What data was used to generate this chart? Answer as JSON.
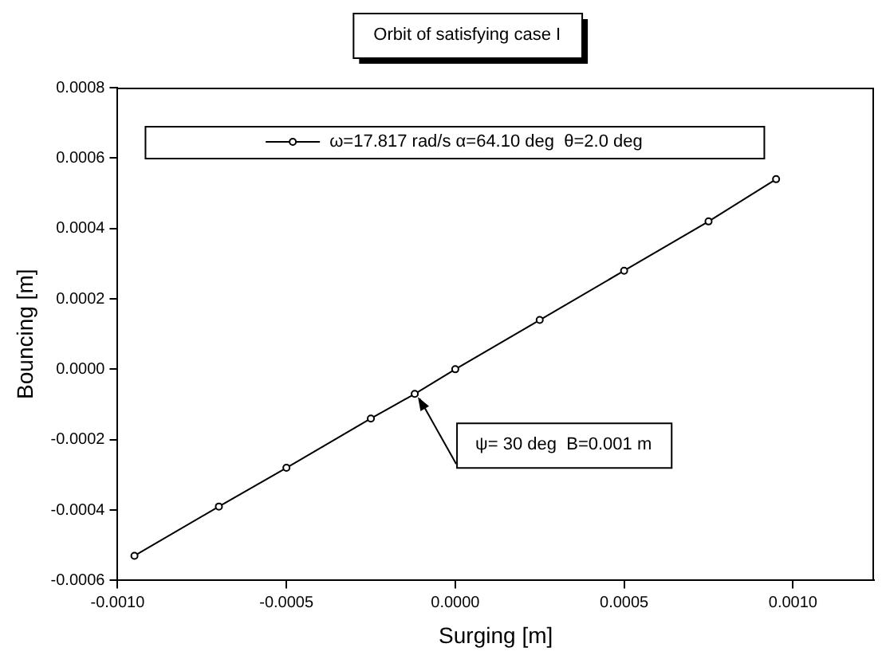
{
  "chart_data": {
    "type": "line",
    "title": "Orbit of satisfying case I",
    "xlabel": "Surging [m]",
    "ylabel": "Bouncing [m]",
    "x": [
      -0.00095,
      -0.0007,
      -0.0005,
      -0.00025,
      -0.00012,
      0,
      0.00025,
      0.0005,
      0.00075,
      0.00095
    ],
    "series": [
      {
        "name": "ω=17.817 rad/s α=64.10 deg  θ=2.0 deg",
        "color": "#000000",
        "values": [
          -0.00053,
          -0.00039,
          -0.00028,
          -0.00014,
          -7e-05,
          0,
          0.00014,
          0.00028,
          0.00042,
          0.00054
        ]
      }
    ],
    "xlim": [
      -0.001,
      0.00124
    ],
    "xticks": [
      {
        "value": -0.001,
        "label": "-0.0010"
      },
      {
        "value": -0.0005,
        "label": "-0.0005"
      },
      {
        "value": 0,
        "label": "0.0000"
      },
      {
        "value": 0.0005,
        "label": "0.0005"
      },
      {
        "value": 0.001,
        "label": "0.0010"
      }
    ],
    "ylim": [
      -0.0006,
      0.0008
    ],
    "yticks": [
      {
        "value": -0.0006,
        "label": "-0.0006"
      },
      {
        "value": -0.0004,
        "label": "-0.0004"
      },
      {
        "value": -0.0002,
        "label": "-0.0002"
      },
      {
        "value": 0,
        "label": "0.0000"
      },
      {
        "value": 0.0002,
        "label": "0.0002"
      },
      {
        "value": 0.0004,
        "label": "0.0004"
      },
      {
        "value": 0.0006,
        "label": "0.0006"
      },
      {
        "value": 0.0008,
        "label": "0.0008"
      }
    ],
    "annotations": [
      {
        "text": "ψ= 30 deg  B=0.001 m",
        "x": -0.00012,
        "y": -7e-05
      }
    ],
    "grid": false,
    "legend": "top",
    "marker": "circle",
    "line_style": "solid"
  }
}
